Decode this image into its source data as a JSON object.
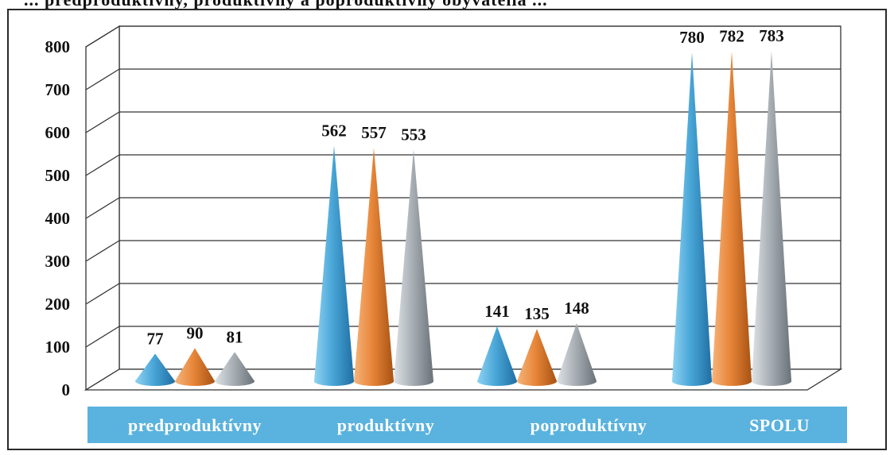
{
  "header": {
    "cut_title": "... predproduktívny, produktívny a poproduktívny obyvatelia ..."
  },
  "chart_data": {
    "type": "bar",
    "mark": "cone",
    "categories": [
      "predproduktívny",
      "produktívny",
      "poproduktívny",
      "SPOLU"
    ],
    "series": [
      {
        "values": [
          77,
          562,
          141,
          780
        ],
        "color": "#4aa7d8"
      },
      {
        "values": [
          90,
          557,
          135,
          782
        ],
        "color": "#e8873a"
      },
      {
        "values": [
          81,
          553,
          148,
          783
        ],
        "color": "#a9b0b6"
      }
    ],
    "y_ticks": [
      "0",
      "100",
      "200",
      "300",
      "400",
      "500",
      "600",
      "700",
      "800"
    ],
    "ylim": [
      0,
      800
    ],
    "grid": true,
    "legend": "none",
    "category_band_color": "#5ab2de",
    "frame_color": "#2a2a2a"
  }
}
